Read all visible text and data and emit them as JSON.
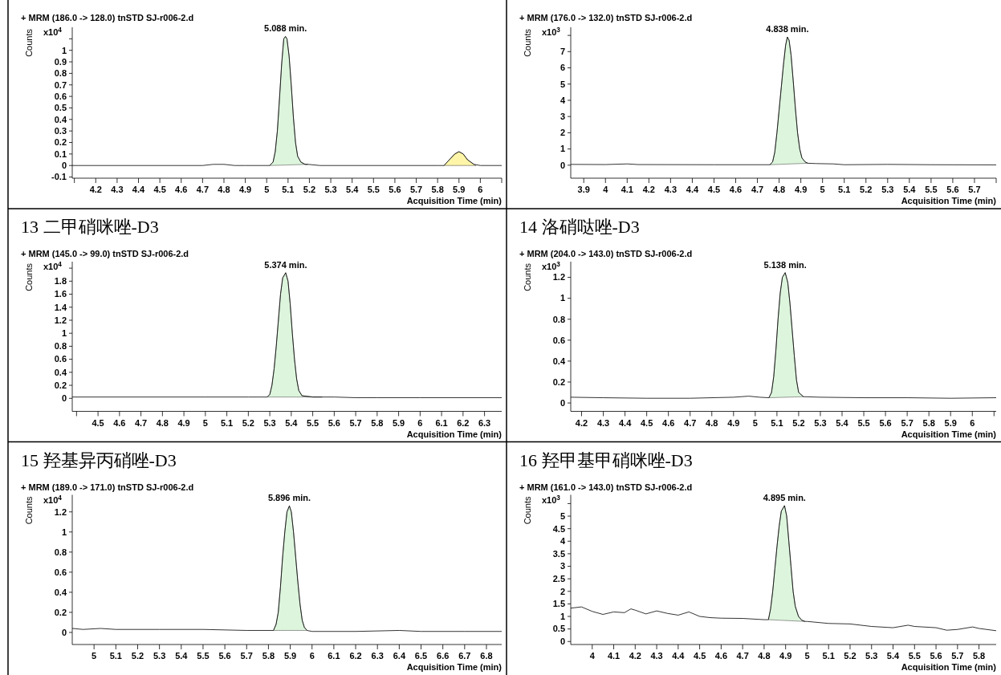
{
  "chart_data": [
    {
      "type": "line",
      "subtitle": "+ MRM (186.0 -> 128.0) tnSTD SJ-r006-2.d",
      "xlabel": "Acquisition Time (min)",
      "ylabel": "Counts",
      "annotations": [
        "x10$^{4}$",
        {
          "text": "5.088 min.",
          "x": 5.088,
          "y": 1.12
        }
      ],
      "xlim": [
        4.09,
        6.1
      ],
      "ylim": [
        -0.11,
        1.2
      ],
      "xticks": [
        {
          "value": 4.1,
          "label": null
        },
        4.2,
        4.3,
        4.4,
        4.5,
        4.6,
        4.7,
        4.8,
        4.9,
        5,
        5.1,
        5.2,
        5.3,
        5.4,
        5.5,
        5.6,
        5.7,
        5.8,
        5.9,
        6,
        {
          "value": 6.1,
          "label": null
        }
      ],
      "yticks": [
        -0.1,
        0,
        0.1,
        0.2,
        0.3,
        0.4,
        0.5,
        0.6,
        0.7,
        0.8,
        0.9,
        1,
        {
          "value": 1.1,
          "label": null
        }
      ],
      "series": [
        {
          "type": "area",
          "color": "#dcf5dc",
          "x": [
            5.014,
            5.03,
            5.04,
            5.05,
            5.06,
            5.07,
            5.08,
            5.088,
            5.095,
            5.105,
            5.115,
            5.125,
            5.135,
            5.145,
            5.16,
            5.18,
            5.193
          ],
          "values": [
            0,
            0.03,
            0.12,
            0.3,
            0.58,
            0.88,
            1.1,
            1.12,
            1.1,
            0.95,
            0.7,
            0.42,
            0.2,
            0.08,
            0.03,
            0.01,
            0.01
          ]
        },
        {
          "type": "area",
          "color": "#fff5a8",
          "x": [
            5.83,
            5.86,
            5.88,
            5.9,
            5.92,
            5.94,
            5.97,
            5.98
          ],
          "values": [
            0,
            0.06,
            0.1,
            0.12,
            0.1,
            0.05,
            0.01,
            0
          ]
        },
        {
          "color": "#000000",
          "x": [
            4.09,
            4.7,
            4.75,
            4.8,
            4.85,
            4.9,
            5.014,
            5.03,
            5.04,
            5.05,
            5.06,
            5.07,
            5.08,
            5.088,
            5.095,
            5.105,
            5.115,
            5.125,
            5.135,
            5.145,
            5.16,
            5.18,
            5.193,
            5.25,
            5.8,
            5.83,
            5.86,
            5.88,
            5.9,
            5.92,
            5.94,
            5.97,
            6.0,
            6.1
          ],
          "values": [
            0,
            0,
            0.01,
            0.01,
            0,
            0,
            0,
            0.03,
            0.12,
            0.3,
            0.58,
            0.88,
            1.1,
            1.12,
            1.1,
            0.95,
            0.7,
            0.42,
            0.2,
            0.08,
            0.03,
            0.01,
            0.01,
            0,
            0,
            0,
            0.06,
            0.1,
            0.12,
            0.1,
            0.05,
            0.01,
            0,
            0
          ]
        }
      ]
    },
    {
      "type": "line",
      "subtitle": "+ MRM (176.0 -> 132.0) tnSTD SJ-r006-2.d",
      "xlabel": "Acquisition Time (min)",
      "ylabel": "Counts",
      "annotations": [
        "x10$^{3}$",
        {
          "text": "4.838 min.",
          "x": 4.838,
          "y": 7.9
        }
      ],
      "xlim": [
        3.84,
        5.8
      ],
      "ylim": [
        -0.8,
        8.5
      ],
      "xticks": [
        3.9,
        4,
        4.1,
        4.2,
        4.3,
        4.4,
        4.5,
        4.6,
        4.7,
        4.8,
        4.9,
        5,
        5.1,
        5.2,
        5.3,
        5.4,
        5.5,
        5.6,
        5.7,
        {
          "value": 5.8,
          "label": null
        }
      ],
      "yticks": [
        0,
        1,
        2,
        3,
        4,
        5,
        6,
        7,
        {
          "value": 8,
          "label": null
        }
      ],
      "series": [
        {
          "type": "area",
          "color": "#dcf5dc",
          "x": [
            4.757,
            4.77,
            4.78,
            4.79,
            4.8,
            4.81,
            4.82,
            4.83,
            4.838,
            4.846,
            4.855,
            4.865,
            4.875,
            4.885,
            4.895,
            4.905,
            4.92,
            4.933
          ],
          "values": [
            0.03,
            0.2,
            0.8,
            2,
            3.4,
            4.8,
            6.2,
            7.4,
            7.9,
            7.7,
            6.8,
            5.2,
            3.5,
            2,
            1,
            0.45,
            0.2,
            0.12
          ]
        },
        {
          "color": "#000000",
          "x": [
            3.84,
            4,
            4.1,
            4.15,
            4.5,
            4.757,
            4.77,
            4.78,
            4.79,
            4.8,
            4.81,
            4.82,
            4.83,
            4.838,
            4.846,
            4.855,
            4.865,
            4.875,
            4.885,
            4.895,
            4.905,
            4.92,
            4.933,
            4.97,
            5.05,
            5.1,
            5.3,
            5.5,
            5.8
          ],
          "values": [
            0.05,
            0.04,
            0.08,
            0.04,
            0.03,
            0.03,
            0.2,
            0.8,
            2,
            3.4,
            4.8,
            6.2,
            7.4,
            7.9,
            7.7,
            6.8,
            5.2,
            3.5,
            2,
            1,
            0.45,
            0.2,
            0.12,
            0.1,
            0.08,
            0.03,
            0.05,
            0.03,
            0.02
          ]
        }
      ]
    },
    {
      "type": "line",
      "title": "13 二甲硝咪唑-D3",
      "subtitle": "+ MRM (145.0 -> 99.0) tnSTD SJ-r006-2.d",
      "xlabel": "Acquisition Time (min)",
      "ylabel": "Counts",
      "annotations": [
        "x10$^{4}$",
        {
          "text": "5.374 min.",
          "x": 5.374,
          "y": 1.93
        }
      ],
      "xlim": [
        4.38,
        6.38
      ],
      "ylim": [
        -0.2,
        2.1
      ],
      "xticks": [
        {
          "value": 4.4,
          "label": null
        },
        4.5,
        4.6,
        4.7,
        4.8,
        4.9,
        5,
        5.1,
        5.2,
        5.3,
        5.4,
        5.5,
        5.6,
        5.7,
        5.8,
        5.9,
        6,
        6.1,
        6.2,
        6.3
      ],
      "yticks": [
        0,
        0.2,
        0.4,
        0.6,
        0.8,
        1,
        1.2,
        1.4,
        1.6,
        1.8,
        {
          "value": 2,
          "label": null
        }
      ],
      "series": [
        {
          "type": "area",
          "color": "#dcf5dc",
          "x": [
            5.288,
            5.3,
            5.31,
            5.32,
            5.33,
            5.34,
            5.35,
            5.36,
            5.374,
            5.385,
            5.395,
            5.405,
            5.415,
            5.425,
            5.435,
            5.45,
            5.5,
            5.545
          ],
          "values": [
            0.02,
            0.06,
            0.2,
            0.45,
            0.8,
            1.2,
            1.6,
            1.85,
            1.93,
            1.8,
            1.45,
            1,
            0.6,
            0.3,
            0.12,
            0.04,
            0.02,
            0.02
          ]
        },
        {
          "color": "#000000",
          "x": [
            4.38,
            5,
            5.2,
            5.288,
            5.3,
            5.31,
            5.32,
            5.33,
            5.34,
            5.35,
            5.36,
            5.374,
            5.385,
            5.395,
            5.405,
            5.415,
            5.425,
            5.435,
            5.45,
            5.5,
            5.545,
            5.6,
            5.7,
            5.8,
            6,
            6.38
          ],
          "values": [
            0.02,
            0.02,
            0.02,
            0.02,
            0.06,
            0.2,
            0.45,
            0.8,
            1.2,
            1.6,
            1.85,
            1.93,
            1.8,
            1.45,
            1,
            0.6,
            0.3,
            0.12,
            0.04,
            0.02,
            0.02,
            0.02,
            0.01,
            0.01,
            0.01,
            0.01
          ]
        }
      ]
    },
    {
      "type": "line",
      "title": "14 洛硝哒唑-D3",
      "subtitle": "+ MRM (204.0 -> 143.0) tnSTD SJ-r006-2.d",
      "xlabel": "Acquisition Time (min)",
      "ylabel": "Counts",
      "annotations": [
        "x10$^{3}$",
        {
          "text": "5.138 min.",
          "x": 5.138,
          "y": 1.245
        }
      ],
      "xlim": [
        4.15,
        6.11
      ],
      "ylim": [
        -0.08,
        1.35
      ],
      "xticks": [
        4.2,
        4.3,
        4.4,
        4.5,
        4.6,
        4.7,
        4.8,
        4.9,
        5,
        5.1,
        5.2,
        5.3,
        5.4,
        5.5,
        5.6,
        5.7,
        5.8,
        5.9,
        6,
        {
          "value": 6.1,
          "label": null
        }
      ],
      "yticks": [
        0,
        0.2,
        0.4,
        0.6,
        0.8,
        1,
        1.2
      ],
      "series": [
        {
          "type": "area",
          "color": "#dcf5dc",
          "x": [
            5.063,
            5.075,
            5.085,
            5.095,
            5.105,
            5.115,
            5.125,
            5.138,
            5.15,
            5.16,
            5.17,
            5.18,
            5.19,
            5.2,
            5.222
          ],
          "values": [
            0.05,
            0.1,
            0.25,
            0.5,
            0.8,
            1.05,
            1.2,
            1.245,
            1.15,
            0.95,
            0.7,
            0.45,
            0.22,
            0.1,
            0.06
          ]
        },
        {
          "color": "#000000",
          "x": [
            4.15,
            4.3,
            4.5,
            4.7,
            4.9,
            4.97,
            5.02,
            5.063,
            5.075,
            5.085,
            5.095,
            5.105,
            5.115,
            5.125,
            5.138,
            5.15,
            5.16,
            5.17,
            5.18,
            5.19,
            5.2,
            5.222,
            5.3,
            5.5,
            5.7,
            5.9,
            6.11
          ],
          "values": [
            0.055,
            0.05,
            0.045,
            0.045,
            0.055,
            0.065,
            0.055,
            0.05,
            0.1,
            0.25,
            0.5,
            0.8,
            1.05,
            1.2,
            1.245,
            1.15,
            0.95,
            0.7,
            0.45,
            0.22,
            0.1,
            0.06,
            0.055,
            0.05,
            0.05,
            0.045,
            0.05
          ]
        }
      ]
    },
    {
      "type": "line",
      "title": "15 羟基异丙硝唑-D3",
      "subtitle": "+ MRM (189.0 -> 171.0) tnSTD SJ-r006-2.d",
      "xlabel": "Acquisition Time (min)",
      "ylabel": "Counts",
      "annotations": [
        "x10$^{4}$",
        {
          "text": "5.896 min.",
          "x": 5.896,
          "y": 1.26
        }
      ],
      "xlim": [
        4.9,
        6.87
      ],
      "ylim": [
        -0.12,
        1.37
      ],
      "xticks": [
        5,
        5.1,
        5.2,
        5.3,
        5.4,
        5.5,
        5.6,
        5.7,
        5.8,
        5.9,
        6,
        6.1,
        6.2,
        6.3,
        6.4,
        6.5,
        6.6,
        6.7,
        6.8
      ],
      "yticks": [
        0,
        0.2,
        0.4,
        0.6,
        0.8,
        1,
        1.2
      ],
      "series": [
        {
          "type": "area",
          "color": "#dcf5dc",
          "x": [
            5.823,
            5.835,
            5.845,
            5.855,
            5.865,
            5.875,
            5.885,
            5.896,
            5.905,
            5.915,
            5.925,
            5.935,
            5.945,
            5.955,
            5.965,
            5.977
          ],
          "values": [
            0.02,
            0.08,
            0.2,
            0.45,
            0.75,
            1,
            1.2,
            1.26,
            1.2,
            1,
            0.75,
            0.5,
            0.28,
            0.12,
            0.05,
            0.02
          ]
        },
        {
          "color": "#000000",
          "x": [
            4.9,
            4.95,
            5.03,
            5.1,
            5.3,
            5.5,
            5.7,
            5.823,
            5.835,
            5.845,
            5.855,
            5.865,
            5.875,
            5.885,
            5.896,
            5.905,
            5.915,
            5.925,
            5.935,
            5.945,
            5.955,
            5.965,
            5.977,
            6,
            6.2,
            6.4,
            6.5,
            6.7,
            6.87
          ],
          "values": [
            0.04,
            0.03,
            0.04,
            0.03,
            0.03,
            0.03,
            0.02,
            0.02,
            0.08,
            0.2,
            0.45,
            0.75,
            1,
            1.2,
            1.26,
            1.2,
            1,
            0.75,
            0.5,
            0.28,
            0.12,
            0.05,
            0.02,
            0.01,
            0.01,
            0.02,
            0.01,
            0.01,
            0.01
          ]
        }
      ]
    },
    {
      "type": "line",
      "title": "16 羟甲基甲硝咪唑-D3",
      "subtitle": "+ MRM (161.0 -> 143.0) tnSTD SJ-r006-2.d",
      "xlabel": "Acquisition Time (min)",
      "ylabel": "Counts",
      "annotations": [
        "x10$^{3}$",
        {
          "text": "4.895 min.",
          "x": 4.895,
          "y": 5.42
        }
      ],
      "xlim": [
        3.9,
        5.88
      ],
      "ylim": [
        -0.12,
        5.85
      ],
      "xticks": [
        4,
        4.1,
        4.2,
        4.3,
        4.4,
        4.5,
        4.6,
        4.7,
        4.8,
        4.9,
        5,
        5.1,
        5.2,
        5.3,
        5.4,
        5.5,
        5.6,
        5.7,
        5.8
      ],
      "yticks": [
        0,
        0.5,
        1,
        1.5,
        2,
        2.5,
        3,
        3.5,
        4,
        4.5,
        5,
        {
          "value": 5.5,
          "label": null
        }
      ],
      "series": [
        {
          "type": "area",
          "color": "#dcf5dc",
          "x": [
            4.82,
            4.83,
            4.84,
            4.85,
            4.86,
            4.87,
            4.88,
            4.895,
            4.905,
            4.915,
            4.925,
            4.935,
            4.945,
            4.96,
            4.975,
            4.99
          ],
          "values": [
            0.87,
            1.3,
            2,
            2.9,
            3.8,
            4.6,
            5.2,
            5.42,
            5,
            4,
            3,
            2,
            1.4,
            1,
            0.85,
            0.8
          ]
        },
        {
          "color": "#000000",
          "x": [
            3.9,
            3.95,
            4,
            4.05,
            4.1,
            4.15,
            4.18,
            4.2,
            4.25,
            4.3,
            4.35,
            4.4,
            4.45,
            4.5,
            4.55,
            4.6,
            4.7,
            4.8,
            4.82,
            4.83,
            4.84,
            4.85,
            4.86,
            4.87,
            4.88,
            4.895,
            4.905,
            4.915,
            4.925,
            4.935,
            4.945,
            4.96,
            4.975,
            4.99,
            5,
            5.1,
            5.2,
            5.3,
            5.4,
            5.47,
            5.5,
            5.6,
            5.65,
            5.7,
            5.77,
            5.8,
            5.88
          ],
          "values": [
            1.33,
            1.38,
            1.2,
            1.08,
            1.18,
            1.15,
            1.3,
            1.25,
            1.1,
            1.22,
            1.12,
            1.05,
            1.18,
            1,
            0.95,
            0.93,
            0.92,
            0.87,
            0.87,
            1.3,
            2,
            2.9,
            3.8,
            4.6,
            5.2,
            5.42,
            5,
            4,
            3,
            2,
            1.4,
            1,
            0.85,
            0.8,
            0.8,
            0.72,
            0.7,
            0.6,
            0.55,
            0.65,
            0.6,
            0.55,
            0.45,
            0.48,
            0.58,
            0.52,
            0.43
          ]
        }
      ]
    }
  ]
}
